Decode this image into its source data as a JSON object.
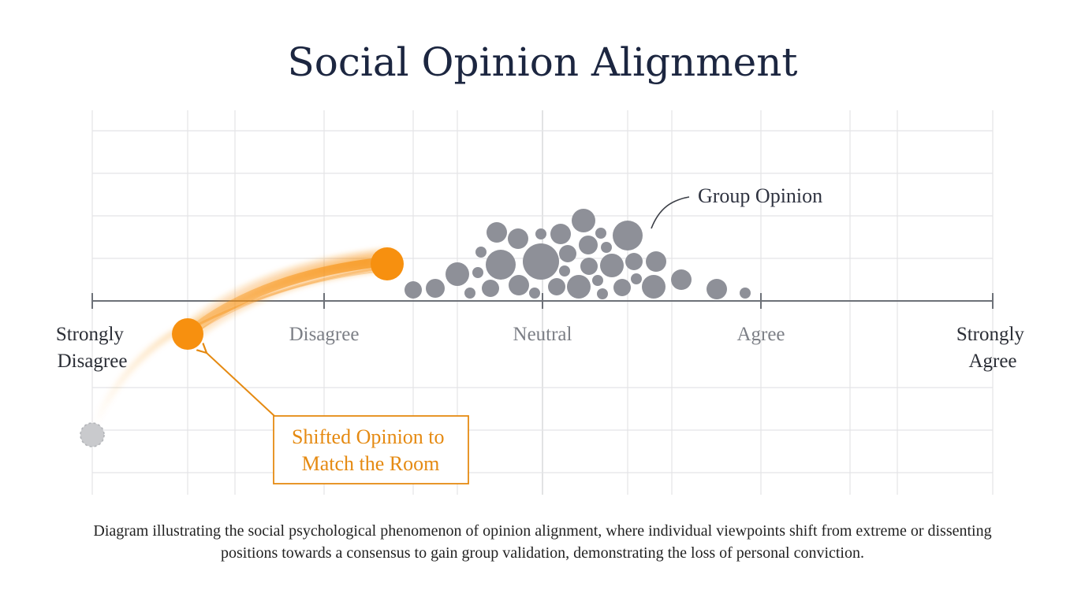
{
  "title": "Social Opinion Alignment",
  "scale": {
    "labels": [
      {
        "lines": [
          "Strongly",
          "Disagree"
        ]
      },
      {
        "lines": [
          "Disagree"
        ]
      },
      {
        "lines": [
          "Neutral"
        ]
      },
      {
        "lines": [
          "Agree"
        ]
      },
      {
        "lines": [
          "Strongly",
          "Agree"
        ]
      }
    ]
  },
  "group_label": "Group Opinion",
  "shift_label": [
    "Shifted Opinion to",
    "Match the Room"
  ],
  "caption": "Diagram illustrating the social psychological phenomenon of opinion alignment, where individual viewpoints shift from extreme or dissenting positions towards a consensus to gain group validation, demonstrating the loss of personal conviction.",
  "colors": {
    "title": "#1c2640",
    "axis": "#6d7178",
    "grid": "#e4e4e6",
    "group_dot": "#8e9098",
    "individual": "#f7900f",
    "shift_box": "#e58a12",
    "faded_dot": "#c9cacd",
    "strong_label": "#2b2e36",
    "muted_label": "#7c7f86"
  }
}
